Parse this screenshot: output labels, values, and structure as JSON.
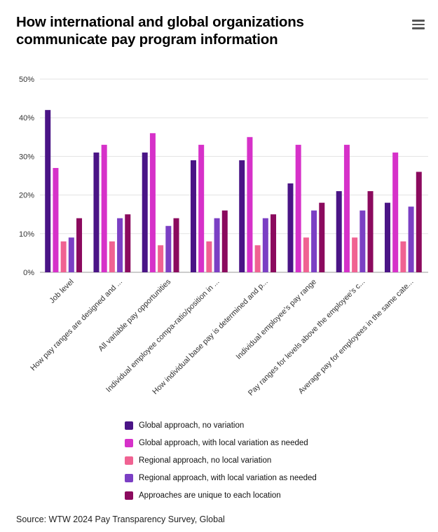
{
  "title": "How international and global organizations communicate pay program information",
  "menu_icon": "hamburger-menu-icon",
  "source": "Source: WTW 2024 Pay Transparency Survey, Global",
  "chart_data": {
    "type": "bar",
    "title": "How international and global organizations communicate pay program information",
    "categories": [
      "Job level",
      "How pay ranges are designed and ...",
      "All variable pay opportunities",
      "Individual employee compa-ratio/position in ...",
      "How individual base pay is determined and p...",
      "Individual employee's pay range",
      "Pay ranges for levels above the employee's c...",
      "Average pay for employees in the same cate..."
    ],
    "series": [
      {
        "name": "Global approach, no variation",
        "color": "#4a1486",
        "values": [
          42,
          31,
          31,
          29,
          29,
          23,
          21,
          18
        ]
      },
      {
        "name": "Global approach, with local variation as needed",
        "color": "#d631c9",
        "values": [
          27,
          33,
          36,
          33,
          35,
          33,
          33,
          31
        ]
      },
      {
        "name": "Regional approach, no local variation",
        "color": "#f06292",
        "values": [
          8,
          8,
          7,
          8,
          7,
          9,
          9,
          8
        ]
      },
      {
        "name": "Regional approach, with local variation as needed",
        "color": "#7b3fc4",
        "values": [
          9,
          14,
          12,
          14,
          14,
          16,
          16,
          17
        ]
      },
      {
        "name": "Approaches are unique to each location",
        "color": "#8b0a5e",
        "values": [
          14,
          15,
          14,
          16,
          15,
          18,
          21,
          26
        ]
      }
    ],
    "yticks": [
      "0%",
      "10%",
      "20%",
      "30%",
      "40%",
      "50%"
    ],
    "ylim": [
      0,
      50
    ],
    "grid": true,
    "legend_position": "bottom"
  }
}
